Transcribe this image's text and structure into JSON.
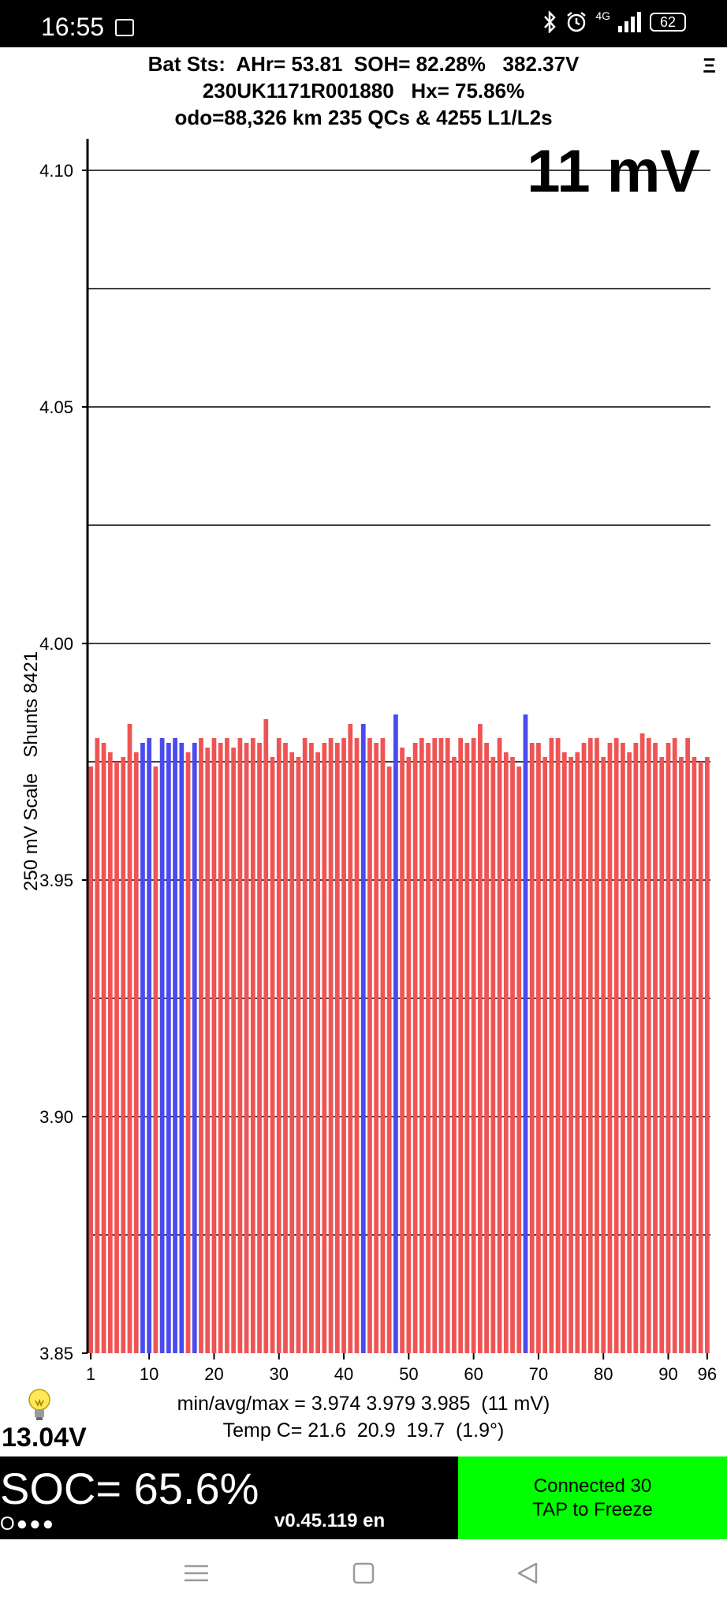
{
  "status_bar": {
    "time": "16:55",
    "network_label": "4G",
    "battery_level": "62",
    "icons": [
      "image-notification-icon",
      "bluetooth-icon",
      "alarm-icon",
      "signal-icon",
      "battery-icon"
    ]
  },
  "header": {
    "line1": "Bat Sts:  AHr= 53.81  SOH= 82.28%   382.37V",
    "line2": "230UK1171R001880   Hx= 75.86%",
    "line3": "odo=88,326 km 235 QCs & 4255 L1/L2s",
    "menu_icon": "Ξ"
  },
  "spread_display": "11 mV",
  "y_axis_title": "250 mV Scale   Shunts 8421",
  "stats": {
    "minmax": "min/avg/max = 3.974 3.979 3.985  (11 mV)",
    "temp": "Temp C= 21.6  20.9  19.7  (1.9°)"
  },
  "aux_voltage": "13.04V",
  "soc": "SOC= 65.6%",
  "dots": "O●●●",
  "version": "v0.45.119 en",
  "freeze_button": {
    "line1": "Connected 30",
    "line2": "TAP to Freeze"
  },
  "colors": {
    "bar_normal": "#ef5454",
    "bar_shunted": "#4a4aee",
    "freeze_bg": "#00ff00"
  },
  "chart_data": {
    "type": "bar",
    "title": "",
    "xlabel": "",
    "ylabel": "250 mV Scale   Shunts 8421",
    "ylim": [
      3.85,
      4.1
    ],
    "yticks": [
      3.85,
      3.9,
      3.95,
      4.0,
      4.05,
      4.1
    ],
    "ytick_labels": [
      "3.85",
      "3.90",
      "3.95",
      "4.00",
      "4.05",
      "4.10"
    ],
    "gridlines": [
      3.875,
      3.9,
      3.925,
      3.95,
      3.975,
      4.0,
      4.025,
      4.05,
      4.075,
      4.1
    ],
    "xtick_labels": [
      "1",
      "10",
      "20",
      "30",
      "40",
      "50",
      "60",
      "70",
      "80",
      "90",
      "96"
    ],
    "xticks": [
      1,
      10,
      20,
      30,
      40,
      50,
      60,
      70,
      80,
      90,
      96
    ],
    "categories": [
      1,
      2,
      3,
      4,
      5,
      6,
      7,
      8,
      9,
      10,
      11,
      12,
      13,
      14,
      15,
      16,
      17,
      18,
      19,
      20,
      21,
      22,
      23,
      24,
      25,
      26,
      27,
      28,
      29,
      30,
      31,
      32,
      33,
      34,
      35,
      36,
      37,
      38,
      39,
      40,
      41,
      42,
      43,
      44,
      45,
      46,
      47,
      48,
      49,
      50,
      51,
      52,
      53,
      54,
      55,
      56,
      57,
      58,
      59,
      60,
      61,
      62,
      63,
      64,
      65,
      66,
      67,
      68,
      69,
      70,
      71,
      72,
      73,
      74,
      75,
      76,
      77,
      78,
      79,
      80,
      81,
      82,
      83,
      84,
      85,
      86,
      87,
      88,
      89,
      90,
      91,
      92,
      93,
      94,
      95,
      96
    ],
    "values": [
      3.974,
      3.98,
      3.979,
      3.977,
      3.975,
      3.976,
      3.983,
      3.977,
      3.979,
      3.98,
      3.974,
      3.98,
      3.979,
      3.98,
      3.979,
      3.977,
      3.979,
      3.98,
      3.978,
      3.98,
      3.979,
      3.98,
      3.978,
      3.98,
      3.979,
      3.98,
      3.979,
      3.984,
      3.976,
      3.98,
      3.979,
      3.977,
      3.976,
      3.98,
      3.979,
      3.977,
      3.979,
      3.98,
      3.979,
      3.98,
      3.983,
      3.98,
      3.983,
      3.98,
      3.979,
      3.98,
      3.974,
      3.985,
      3.978,
      3.976,
      3.979,
      3.98,
      3.979,
      3.98,
      3.98,
      3.98,
      3.976,
      3.98,
      3.979,
      3.98,
      3.983,
      3.979,
      3.976,
      3.98,
      3.977,
      3.976,
      3.974,
      3.985,
      3.979,
      3.979,
      3.976,
      3.98,
      3.98,
      3.977,
      3.976,
      3.977,
      3.979,
      3.98,
      3.98,
      3.976,
      3.979,
      3.98,
      3.979,
      3.977,
      3.979,
      3.981,
      3.98,
      3.979,
      3.976,
      3.979,
      3.98,
      3.976,
      3.98,
      3.976,
      3.975,
      3.976
    ],
    "shunted_cells": [
      9,
      10,
      12,
      13,
      14,
      15,
      17,
      43,
      48,
      68
    ]
  }
}
